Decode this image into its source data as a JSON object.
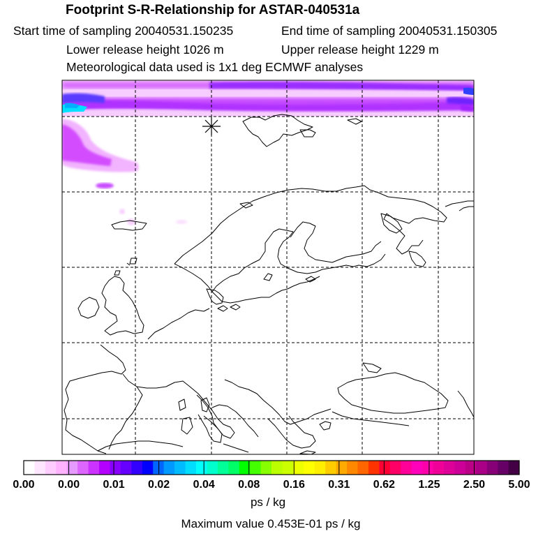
{
  "header": {
    "title": "Footprint S-R-Relationship for ASTAR-040531a",
    "start_time": "Start time of sampling 20040531.150235",
    "end_time": "End time of sampling 20040531.150305",
    "lower_height": "Lower release height 1026 m",
    "upper_height": "Upper release height 1229 m",
    "met_data": "Meteorological data used is 1x1 deg ECMWF analyses"
  },
  "map": {
    "release_marker": "star-marker",
    "plume_colors": [
      "#ffe6ff",
      "#ffb3ff",
      "#f080ff",
      "#d040ff",
      "#b000ff",
      "#8000ff",
      "#3030ff",
      "#00c0ff",
      "#00ffff"
    ]
  },
  "colorbar": {
    "colors": [
      "#ffffff",
      "#ffe6ff",
      "#ffccff",
      "#ffb3ff",
      "#e699ff",
      "#dd66ff",
      "#cc33ff",
      "#b300ff",
      "#8800ff",
      "#6600ff",
      "#3300ff",
      "#0000ff",
      "#0066ff",
      "#0099ff",
      "#00bbff",
      "#00ddff",
      "#00ffff",
      "#00ffcc",
      "#00ff99",
      "#00ff66",
      "#00ff00",
      "#44ff00",
      "#88ff00",
      "#bbff00",
      "#ccff00",
      "#eeff00",
      "#ffff00",
      "#ffee00",
      "#ffcc00",
      "#ffaa00",
      "#ff8800",
      "#ff6600",
      "#ff3300",
      "#ff0033",
      "#ff0066",
      "#ff0099",
      "#ff00bb",
      "#ff00aa",
      "#ee0099",
      "#dd0099",
      "#cc0099",
      "#bb0088",
      "#aa0088",
      "#880077",
      "#660066",
      "#440044"
    ],
    "ticks": [
      "0.00",
      "0.00",
      "0.01",
      "0.02",
      "0.04",
      "0.08",
      "0.16",
      "0.31",
      "0.62",
      "1.25",
      "2.50",
      "5.00"
    ],
    "units": "ps / kg"
  },
  "footer": {
    "max_value": "Maximum value  0.453E-01 ps / kg"
  }
}
